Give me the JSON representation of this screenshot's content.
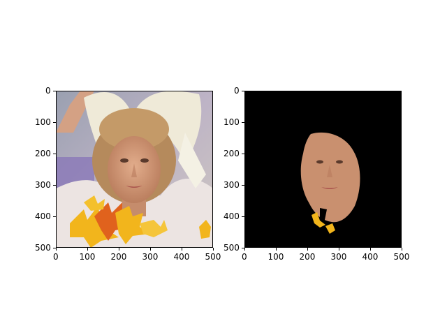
{
  "figure": {
    "panels": [
      {
        "content": "face photograph with bow and autumn leaves overlay",
        "x_ticks": [
          "0",
          "100",
          "200",
          "300",
          "400",
          "500"
        ],
        "y_ticks": [
          "0",
          "100",
          "200",
          "300",
          "400",
          "500"
        ]
      },
      {
        "content": "segmented face on black background",
        "x_ticks": [
          "0",
          "100",
          "200",
          "300",
          "400",
          "500"
        ],
        "y_ticks": [
          "0",
          "100",
          "200",
          "300",
          "400",
          "500"
        ]
      }
    ],
    "colors": {
      "background": "#ffffff",
      "mask_background": "#000000",
      "skin": "#c9906f",
      "hair": "#b58a5c",
      "bow": "#efead8",
      "leaf_yellow": "#f2b51c",
      "leaf_orange": "#e0621d"
    }
  }
}
